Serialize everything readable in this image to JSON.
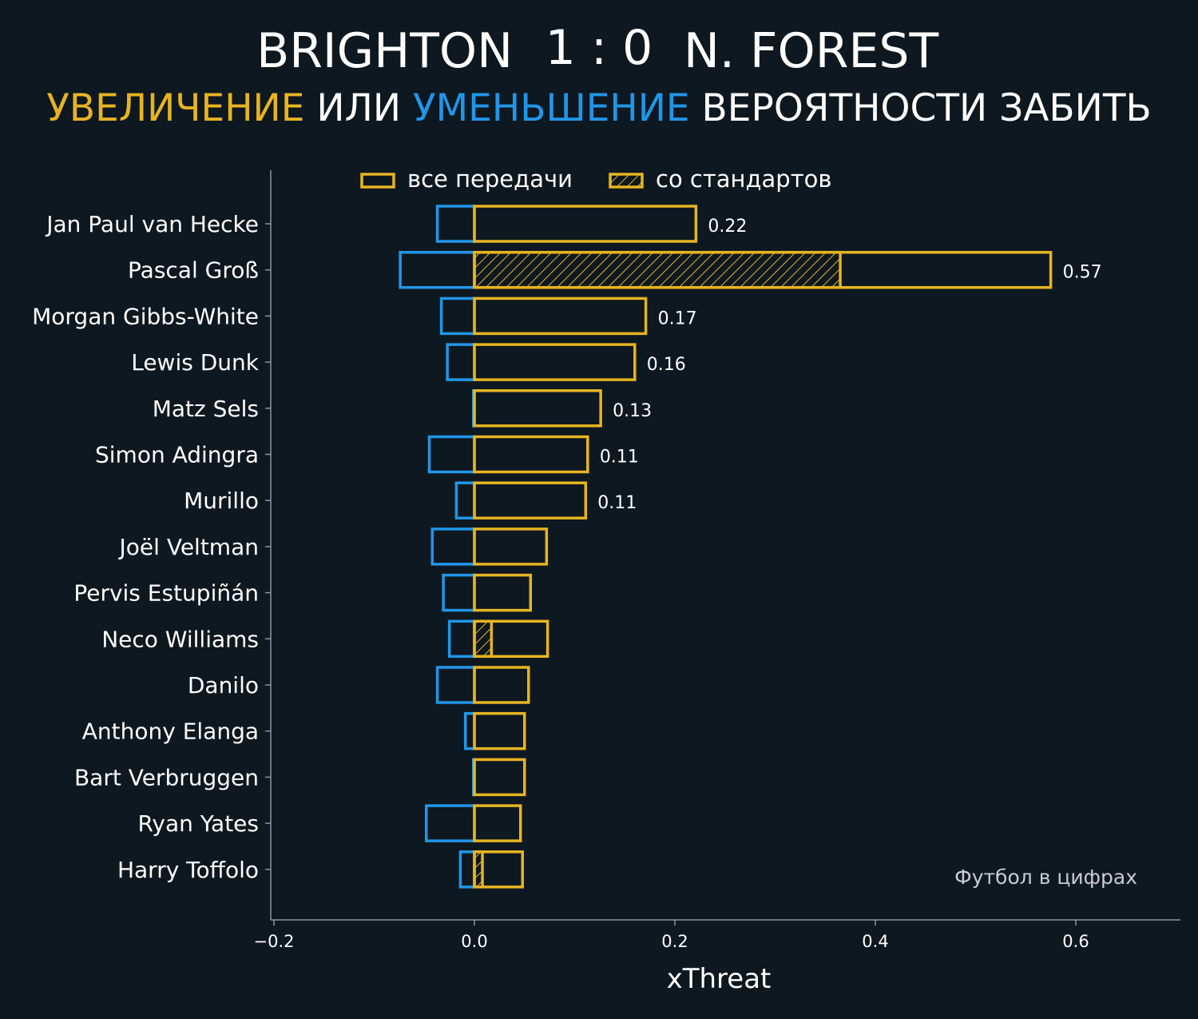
{
  "header": {
    "home_team": "BRIGHTON",
    "score": "1 : 0",
    "away_team": "N. FOREST",
    "subtitle_part1": "УВЕЛИЧЕНИЕ",
    "subtitle_part2": " ИЛИ ",
    "subtitle_part3": "УМЕНЬШЕНИЕ",
    "subtitle_part4": " ВЕРОЯТНОСТИ ЗАБИТЬ"
  },
  "colors": {
    "background": "#0e1821",
    "increase": "#e7b421",
    "decrease": "#2196e8",
    "text": "#ffffff",
    "axis": "#8c96a0"
  },
  "watermark": "Футбол в цифрах",
  "chart_data": {
    "type": "bar",
    "orientation": "horizontal",
    "xlabel": "xThreat",
    "xlim": [
      -0.2,
      0.7
    ],
    "xticks": [
      -0.2,
      0.0,
      0.2,
      0.4,
      0.6
    ],
    "xtick_labels": [
      "−0.2",
      "0.0",
      "0.2",
      "0.4",
      "0.6"
    ],
    "legend": {
      "placement": "top",
      "entries": [
        "все передачи",
        "со стандартов"
      ]
    },
    "categories": [
      "Jan Paul van Hecke",
      "Pascal Groß",
      "Morgan Gibbs-White",
      "Lewis Dunk",
      "Matz Sels",
      "Simon Adingra",
      "Murillo",
      "Joël Veltman",
      "Pervis Estupiñán",
      "Neco Williams",
      "Danilo",
      "Anthony Elanga",
      "Bart Verbruggen",
      "Ryan Yates",
      "Harry Toffolo"
    ],
    "series": [
      {
        "name": "все передачи",
        "values": [
          0.221,
          0.575,
          0.171,
          0.16,
          0.126,
          0.113,
          0.111,
          0.072,
          0.056,
          0.073,
          0.054,
          0.05,
          0.05,
          0.046,
          0.048
        ]
      },
      {
        "name": "со стандартов",
        "values": [
          0,
          0.365,
          0,
          0,
          0,
          0,
          0,
          0,
          0,
          0.017,
          0,
          0,
          0,
          0,
          0.008
        ]
      },
      {
        "values": [
          -0.037,
          -0.074,
          -0.033,
          -0.027,
          -0.001,
          -0.045,
          -0.018,
          -0.042,
          -0.031,
          -0.025,
          -0.037,
          -0.009,
          -0.001,
          -0.048,
          -0.014
        ]
      }
    ],
    "data_labels": [
      "0.22",
      "0.57",
      "0.17",
      "0.16",
      "0.13",
      "0.11",
      "0.11",
      "",
      "",
      "",
      "",
      "",
      "",
      "",
      ""
    ]
  }
}
